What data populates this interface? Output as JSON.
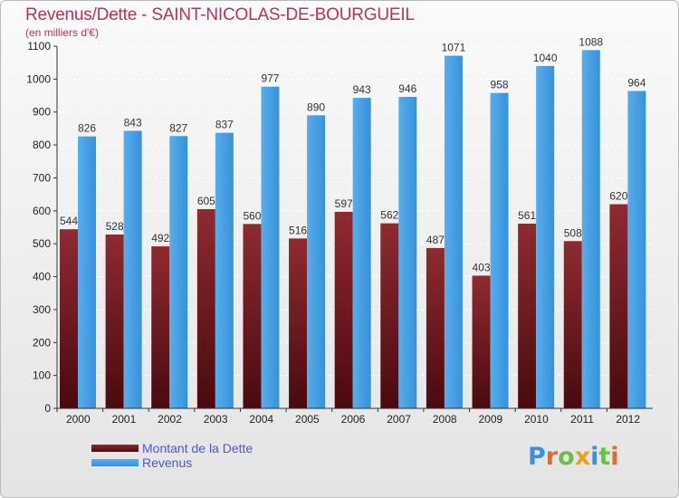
{
  "chart_data": {
    "type": "bar",
    "title": "Revenus/Dette - SAINT-NICOLAS-DE-BOURGUEIL",
    "subtitle": "(en milliers d'€)",
    "categories": [
      "2000",
      "2001",
      "2002",
      "2003",
      "2004",
      "2005",
      "2006",
      "2007",
      "2008",
      "2009",
      "2010",
      "2011",
      "2012"
    ],
    "series": [
      {
        "name": "Montant de la Dette",
        "values": [
          544,
          528,
          492,
          605,
          560,
          516,
          597,
          562,
          487,
          403,
          561,
          508,
          620
        ],
        "color": "#6b1a1f"
      },
      {
        "name": "Revenus",
        "values": [
          826,
          843,
          827,
          837,
          977,
          890,
          943,
          946,
          1071,
          958,
          1040,
          1088,
          964
        ],
        "color": "#4aa3e6"
      }
    ],
    "ylim": [
      0,
      1100
    ],
    "yticks": [
      0,
      100,
      200,
      300,
      400,
      500,
      600,
      700,
      800,
      900,
      1000,
      1100
    ],
    "grid": true,
    "legend_position": "bottom-left"
  },
  "branding": {
    "logo_letters": [
      "P",
      "r",
      "o",
      "x",
      "i",
      "t",
      "i"
    ],
    "logo_colors": [
      "#3d8fdc",
      "#e26b2e",
      "#6cc04a",
      "#e4a321",
      "#3d8fdc",
      "#6cc04a",
      "#e26b2e"
    ]
  }
}
